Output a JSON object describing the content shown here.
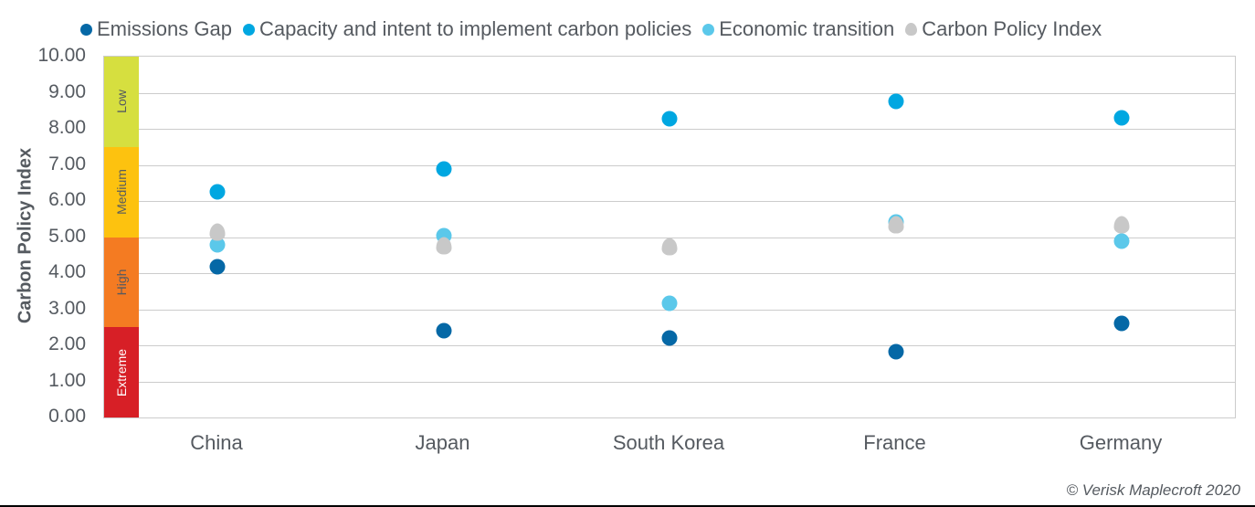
{
  "legend": [
    {
      "label": "Emissions Gap",
      "color": "#0568a6",
      "shape": "circle"
    },
    {
      "label": "Capacity and intent to implement carbon policies",
      "color": "#00a7e1",
      "shape": "circle"
    },
    {
      "label": "Economic transition",
      "color": "#5bc8ea",
      "shape": "circle"
    },
    {
      "label": "Carbon Policy Index",
      "color": "#c8c8c8",
      "shape": "triangle"
    }
  ],
  "yaxis": {
    "label": "Carbon Policy Index",
    "ticks": [
      "10.00",
      "9.00",
      "8.00",
      "7.00",
      "6.00",
      "5.00",
      "4.00",
      "3.00",
      "2.00",
      "1.00",
      "0.00"
    ]
  },
  "bands": [
    {
      "label": "Low",
      "from": 7.5,
      "to": 10,
      "color": "#d6df3f",
      "text_color": "#555a60"
    },
    {
      "label": "Medium",
      "from": 5,
      "to": 7.5,
      "color": "#fdc20f",
      "text_color": "#555a60"
    },
    {
      "label": "High",
      "from": 2.5,
      "to": 5,
      "color": "#f47b22",
      "text_color": "#555a60"
    },
    {
      "label": "Extreme",
      "from": 0,
      "to": 2.5,
      "color": "#d71f26",
      "text_color": "#ffffff"
    }
  ],
  "copyright": "© Verisk Maplecroft 2020",
  "chart_data": {
    "type": "scatter",
    "title": "",
    "xlabel": "",
    "ylabel": "Carbon Policy Index",
    "ylim": [
      0,
      10
    ],
    "grid": true,
    "legend_position": "top",
    "categories": [
      "China",
      "Japan",
      "South Korea",
      "France",
      "Germany"
    ],
    "series": [
      {
        "name": "Emissions Gap",
        "color": "#0568a6",
        "marker": "circle",
        "values": [
          4.18,
          2.41,
          2.2,
          1.82,
          2.61
        ]
      },
      {
        "name": "Capacity and intent to implement carbon policies",
        "color": "#00a7e1",
        "marker": "circle",
        "values": [
          6.25,
          6.89,
          8.28,
          8.76,
          8.3
        ]
      },
      {
        "name": "Economic transition",
        "color": "#5bc8ea",
        "marker": "circle",
        "values": [
          4.78,
          5.04,
          3.16,
          5.42,
          4.89
        ]
      },
      {
        "name": "Carbon Policy Index",
        "color": "#c8c8c8",
        "marker": "triangle",
        "values": [
          5.11,
          4.73,
          4.71,
          5.32,
          5.32
        ]
      }
    ],
    "bands": [
      {
        "label": "Low",
        "range": [
          7.5,
          10
        ]
      },
      {
        "label": "Medium",
        "range": [
          5,
          7.5
        ]
      },
      {
        "label": "High",
        "range": [
          2.5,
          5
        ]
      },
      {
        "label": "Extreme",
        "range": [
          0,
          2.5
        ]
      }
    ],
    "annotations": [
      "© Verisk Maplecroft 2020"
    ]
  }
}
